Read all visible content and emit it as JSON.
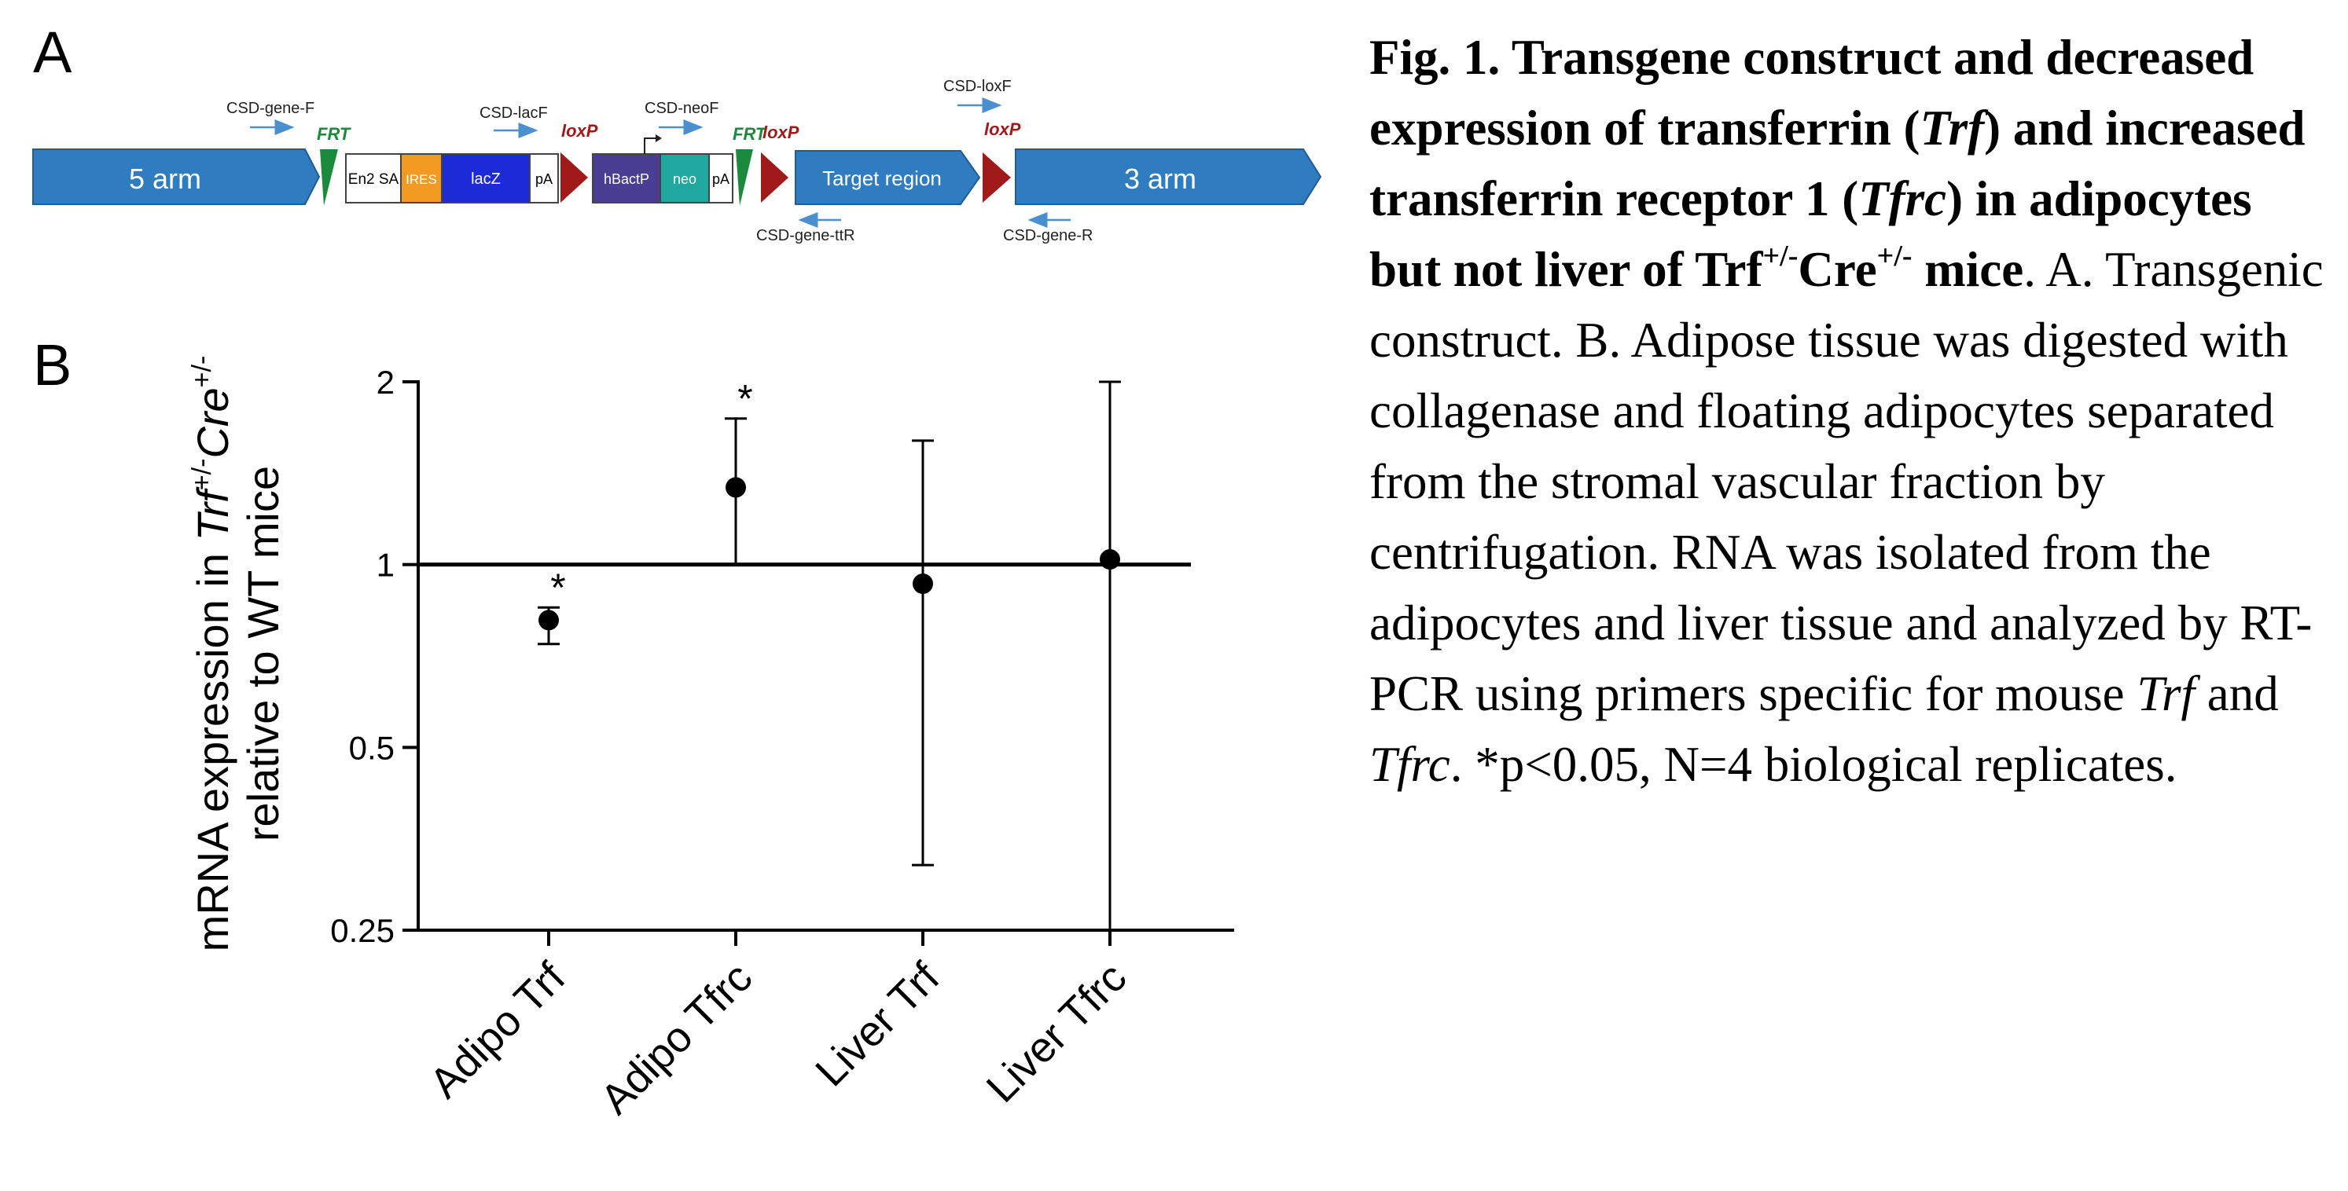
{
  "panel_a": {
    "letter": "A",
    "elements": {
      "arm5": "5 arm",
      "en2sa": "En2 SA",
      "ires": "IRES",
      "lacz": "lacZ",
      "pa1": "pA",
      "hbactp": "hBactP",
      "neo": "neo",
      "pa2": "pA",
      "target": "Target region",
      "arm3": "3 arm"
    },
    "labels": {
      "frt": "FRT",
      "loxp": "loxP"
    },
    "primers": {
      "gene_f": "CSD-gene-F",
      "lacf": "CSD-lacF",
      "neof": "CSD-neoF",
      "loxf": "CSD-loxF",
      "gene_ttr": "CSD-gene-ttR",
      "gene_r": "CSD-gene-R"
    },
    "colors": {
      "arm": "#2f7cc1",
      "frt": "#1c8a3c",
      "loxp": "#a01a1a",
      "ires": "#f39a22",
      "lacz": "#1d2bd6",
      "hbactp": "#4a3d94",
      "neo": "#1fa8a0",
      "primer": "#4a90d0"
    }
  },
  "panel_b": {
    "letter": "B",
    "chart_data": {
      "type": "scatter",
      "categories": [
        "Adipo Trf",
        "Adipo Tfrc",
        "Liver Trf",
        "Liver Tfrc"
      ],
      "values": [
        0.81,
        1.34,
        0.93,
        1.02
      ],
      "error_low": [
        0.74,
        1.0,
        0.32,
        0.25
      ],
      "error_high": [
        0.85,
        1.74,
        1.6,
        2.0
      ],
      "significant": [
        true,
        true,
        false,
        false
      ],
      "significance_mark": "*",
      "reference_line": 1,
      "yscale": "log2",
      "ylim": [
        0.25,
        2
      ],
      "yticks": [
        {
          "value": 0.25,
          "label": "0.25"
        },
        {
          "value": 0.5,
          "label": "0.5"
        },
        {
          "value": 1,
          "label": "1"
        },
        {
          "value": 2,
          "label": "2"
        }
      ],
      "ylabel_parts": {
        "pre": "mRNA expression in ",
        "trf": "Trf",
        "trf_sup": "+/-",
        "cre": "Cre",
        "cre_sup": "+/-",
        "line2": "relative to WT mice"
      }
    }
  },
  "caption": {
    "title_1": "Fig. 1. Transgene construct and decreased expression of transferrin (",
    "title_trf": "Trf",
    "title_2": ") and increased transferrin receptor 1 (",
    "title_tfrc": "Tfrc",
    "title_3": ") in adipocytes but not liver of Trf",
    "title_sup1": "+/-",
    "title_4": "Cre",
    "title_sup2": "+/-",
    "title_5": " mice",
    "body_1": ". A. Transgenic construct. B. Adipose tissue was digested with collagenase and floating adipocytes separated from the stromal vascular fraction by centrifugation. RNA was isolated from the adipocytes and liver tissue and analyzed by RT-PCR using primers specific for mouse ",
    "body_trf": "Trf",
    "body_2": " and ",
    "body_tfrc": "Tfrc",
    "body_3": ". *p<0.05, N=4 biological replicates."
  }
}
